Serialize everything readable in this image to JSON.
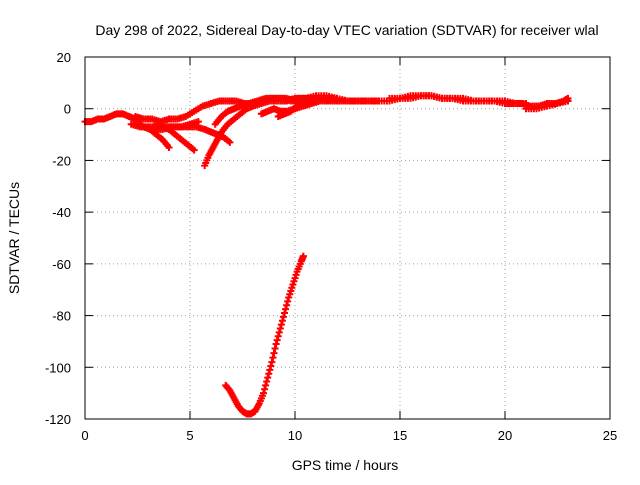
{
  "chart_data": {
    "type": "scatter",
    "title": "Day 298 of 2022, Sidereal Day-to-day VTEC variation (SDTVAR) for receiver wlal",
    "xlabel": "GPS time / hours",
    "ylabel": "SDTVAR / TECUs",
    "xlim": [
      0,
      25
    ],
    "ylim": [
      -120,
      20
    ],
    "xticks": [
      0,
      5,
      10,
      15,
      20,
      25
    ],
    "xtick_labels": [
      "0",
      "5",
      "10",
      "15",
      "20",
      "25"
    ],
    "yticks": [
      -120,
      -100,
      -80,
      -60,
      -40,
      -20,
      0,
      20
    ],
    "ytick_labels": [
      "-120",
      "-100",
      "-80",
      "-60",
      "-40",
      "-20",
      "0",
      "20"
    ],
    "grid": true,
    "marker": "plus",
    "series": [
      {
        "color": "#ff0000",
        "tracks": [
          {
            "x": [
              0,
              0.3,
              0.6,
              0.9,
              1.2,
              1.5,
              1.8,
              2.1,
              2.4,
              2.7
            ],
            "y": [
              -5,
              -5,
              -4,
              -4,
              -3,
              -2,
              -2,
              -3,
              -4,
              -4
            ]
          },
          {
            "x": [
              2.4,
              2.8,
              3.2,
              3.6,
              4.0,
              4.4,
              4.8,
              5.2,
              5.6,
              6.0,
              6.4,
              6.8,
              7.2,
              7.6,
              8.0,
              8.4,
              8.8,
              9.2,
              9.6,
              10.0,
              10.4,
              10.8,
              11.2,
              11.6,
              12.0,
              12.4,
              12.8,
              13.2,
              13.6,
              14.0
            ],
            "y": [
              -3,
              -4,
              -4,
              -5,
              -4,
              -4,
              -3,
              -1,
              1,
              2,
              3,
              3,
              3,
              2,
              2,
              3,
              4,
              4,
              4,
              3,
              4,
              4,
              4,
              3,
              3,
              3,
              3,
              3,
              3,
              3
            ]
          },
          {
            "x": [
              2.2,
              2.6,
              3.0,
              3.4,
              3.8,
              4.2,
              4.6,
              5.0,
              5.4
            ],
            "y": [
              -6,
              -7,
              -7,
              -7,
              -7,
              -7,
              -7,
              -6,
              -5
            ]
          },
          {
            "x": [
              2.5,
              2.8,
              3.1,
              3.4,
              3.7,
              4.0
            ],
            "y": [
              -6,
              -7,
              -8,
              -10,
              -12,
              -15
            ]
          },
          {
            "x": [
              3.3,
              3.7,
              4.1,
              4.5,
              4.9,
              5.3,
              5.7,
              6.0,
              6.3,
              6.6,
              6.9
            ],
            "y": [
              -8,
              -8,
              -7,
              -7,
              -7,
              -7,
              -8,
              -9,
              -10,
              -11,
              -13
            ]
          },
          {
            "x": [
              3.4,
              3.7,
              4.0,
              4.3,
              4.6,
              4.9,
              5.2
            ],
            "y": [
              -6,
              -7,
              -8,
              -10,
              -12,
              -14,
              -16
            ]
          },
          {
            "x": [
              5.7,
              5.9,
              6.1,
              6.3,
              6.5,
              6.8,
              7.1,
              7.4,
              7.7,
              8.0,
              8.4,
              8.8,
              9.2,
              9.6,
              10.0,
              10.4
            ],
            "y": [
              -22,
              -18,
              -15,
              -12,
              -9,
              -6,
              -4,
              -2,
              0,
              1,
              2,
              3,
              3,
              3,
              4,
              4
            ]
          },
          {
            "x": [
              6.2,
              6.5,
              6.8,
              7.1,
              7.4,
              7.8,
              8.2,
              8.6,
              9.0,
              9.4,
              9.8,
              10.2,
              10.6,
              11.0
            ],
            "y": [
              -6,
              -3,
              -1,
              0,
              1,
              2,
              3,
              4,
              4,
              4,
              3,
              3,
              4,
              4
            ]
          },
          {
            "x": [
              8.4,
              8.7,
              9.0,
              9.3,
              9.6,
              10.0,
              10.4,
              10.8,
              11.2,
              11.6,
              12.0
            ],
            "y": [
              -2,
              -1,
              0,
              -1,
              -1,
              0,
              1,
              2,
              3,
              3,
              4
            ]
          },
          {
            "x": [
              9.2,
              9.5,
              9.8,
              10.1,
              10.4,
              10.7,
              11.0,
              11.4,
              11.8
            ],
            "y": [
              -3,
              -2,
              -1,
              1,
              2,
              3,
              3,
              4,
              4
            ]
          },
          {
            "x": [
              9.5,
              10.0,
              10.5,
              11.0,
              11.5,
              12.0,
              12.5,
              13.0,
              13.5,
              14.0
            ],
            "y": [
              3,
              4,
              4,
              5,
              5,
              4,
              3,
              3,
              3,
              3
            ]
          },
          {
            "x": [
              12.5,
              13.0,
              13.5,
              14.0,
              14.5,
              15.0,
              15.5,
              16.0,
              16.5,
              17.0,
              17.5,
              18.0,
              18.5,
              19.0,
              19.5,
              20.0,
              20.5
            ],
            "y": [
              3,
              3,
              3,
              3,
              3,
              4,
              4,
              5,
              5,
              4,
              4,
              3,
              3,
              3,
              3,
              2,
              2
            ]
          },
          {
            "x": [
              14.5,
              15.0,
              15.5,
              16.0,
              16.5,
              17.0,
              17.5,
              18.0,
              18.5,
              19.0,
              19.5,
              20.0,
              20.5,
              21.0
            ],
            "y": [
              4,
              4,
              5,
              5,
              5,
              4,
              4,
              4,
              3,
              3,
              3,
              3,
              2,
              2
            ]
          },
          {
            "x": [
              20.0,
              20.4,
              20.8,
              21.2,
              21.6,
              22.0,
              22.4,
              22.8,
              23.0
            ],
            "y": [
              2,
              2,
              2,
              1,
              1,
              2,
              2,
              3,
              4
            ]
          },
          {
            "x": [
              21.0,
              21.5,
              22.0,
              22.5,
              23.0
            ],
            "y": [
              0,
              0,
              1,
              2,
              3
            ]
          },
          {
            "x": [
              6.7,
              6.9,
              7.1,
              7.3,
              7.5,
              7.7,
              7.9,
              8.1,
              8.3,
              8.5,
              8.7,
              8.9,
              9.1,
              9.3,
              9.5,
              9.7,
              9.9,
              10.1,
              10.3,
              10.4
            ],
            "y": [
              -107,
              -109,
              -112,
              -115,
              -117,
              -118,
              -118,
              -117,
              -114,
              -110,
              -104,
              -98,
              -91,
              -85,
              -79,
              -73,
              -68,
              -63,
              -59,
              -57
            ]
          }
        ]
      }
    ]
  }
}
